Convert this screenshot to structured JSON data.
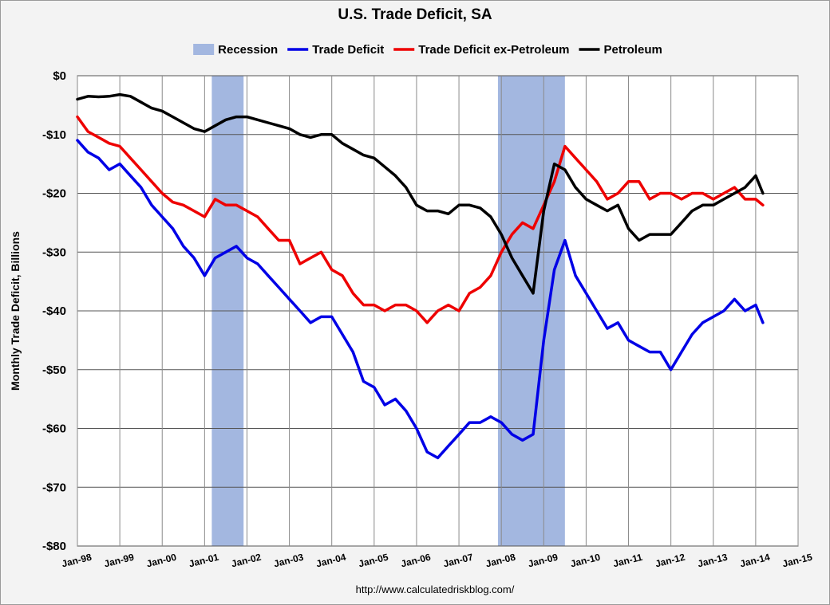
{
  "chart_data": {
    "type": "line",
    "title": "U.S. Trade Deficit, SA",
    "ylabel": "Monthly Trade Deficit, Billions",
    "xlabel": "",
    "source": "http://www.calculatedriskblog.com/",
    "ylim": [
      -80,
      0
    ],
    "xlim": [
      1998.0,
      2015.0
    ],
    "y_ticks": [
      0,
      -10,
      -20,
      -30,
      -40,
      -50,
      -60,
      -70,
      -80
    ],
    "y_tick_labels": [
      "$0",
      "-$10",
      "-$20",
      "-$30",
      "-$40",
      "-$50",
      "-$60",
      "-$70",
      "-$80"
    ],
    "x_ticks": [
      1998,
      1999,
      2000,
      2001,
      2002,
      2003,
      2004,
      2005,
      2006,
      2007,
      2008,
      2009,
      2010,
      2011,
      2012,
      2013,
      2014,
      2015
    ],
    "x_tick_labels": [
      "Jan-98",
      "Jan-99",
      "Jan-00",
      "Jan-01",
      "Jan-02",
      "Jan-03",
      "Jan-04",
      "Jan-05",
      "Jan-06",
      "Jan-07",
      "Jan-08",
      "Jan-09",
      "Jan-10",
      "Jan-11",
      "Jan-12",
      "Jan-13",
      "Jan-14",
      "Jan-15"
    ],
    "legend": [
      {
        "label": "Recession",
        "color": "#a3b7e0",
        "kind": "box"
      },
      {
        "label": "Trade Deficit",
        "color": "#0000e6",
        "kind": "line"
      },
      {
        "label": "Trade Deficit ex-Petroleum",
        "color": "#ee0000",
        "kind": "line"
      },
      {
        "label": "Petroleum",
        "color": "#000000",
        "kind": "line"
      }
    ],
    "recessions": [
      {
        "start": 2001.17,
        "end": 2001.92
      },
      {
        "start": 2007.92,
        "end": 2009.5
      }
    ],
    "series": [
      {
        "name": "Trade Deficit",
        "color": "#0000e6",
        "points": [
          [
            1998.0,
            -11
          ],
          [
            1998.25,
            -13
          ],
          [
            1998.5,
            -14
          ],
          [
            1998.75,
            -16
          ],
          [
            1999.0,
            -15
          ],
          [
            1999.25,
            -17
          ],
          [
            1999.5,
            -19
          ],
          [
            1999.75,
            -22
          ],
          [
            2000.0,
            -24
          ],
          [
            2000.25,
            -26
          ],
          [
            2000.5,
            -29
          ],
          [
            2000.75,
            -31
          ],
          [
            2001.0,
            -34
          ],
          [
            2001.25,
            -31
          ],
          [
            2001.5,
            -30
          ],
          [
            2001.75,
            -29
          ],
          [
            2002.0,
            -31
          ],
          [
            2002.25,
            -32
          ],
          [
            2002.5,
            -34
          ],
          [
            2002.75,
            -36
          ],
          [
            2003.0,
            -38
          ],
          [
            2003.25,
            -40
          ],
          [
            2003.5,
            -42
          ],
          [
            2003.75,
            -41
          ],
          [
            2004.0,
            -41
          ],
          [
            2004.25,
            -44
          ],
          [
            2004.5,
            -47
          ],
          [
            2004.75,
            -52
          ],
          [
            2005.0,
            -53
          ],
          [
            2005.25,
            -56
          ],
          [
            2005.5,
            -55
          ],
          [
            2005.75,
            -57
          ],
          [
            2006.0,
            -60
          ],
          [
            2006.25,
            -64
          ],
          [
            2006.5,
            -65
          ],
          [
            2006.75,
            -63
          ],
          [
            2007.0,
            -61
          ],
          [
            2007.25,
            -59
          ],
          [
            2007.5,
            -59
          ],
          [
            2007.75,
            -58
          ],
          [
            2008.0,
            -59
          ],
          [
            2008.25,
            -61
          ],
          [
            2008.5,
            -62
          ],
          [
            2008.75,
            -61
          ],
          [
            2009.0,
            -45
          ],
          [
            2009.25,
            -33
          ],
          [
            2009.5,
            -28
          ],
          [
            2009.75,
            -34
          ],
          [
            2010.0,
            -37
          ],
          [
            2010.25,
            -40
          ],
          [
            2010.5,
            -43
          ],
          [
            2010.75,
            -42
          ],
          [
            2011.0,
            -45
          ],
          [
            2011.25,
            -46
          ],
          [
            2011.5,
            -47
          ],
          [
            2011.75,
            -47
          ],
          [
            2012.0,
            -50
          ],
          [
            2012.25,
            -47
          ],
          [
            2012.5,
            -44
          ],
          [
            2012.75,
            -42
          ],
          [
            2013.0,
            -41
          ],
          [
            2013.25,
            -40
          ],
          [
            2013.5,
            -38
          ],
          [
            2013.75,
            -40
          ],
          [
            2014.0,
            -39
          ],
          [
            2014.17,
            -42
          ]
        ]
      },
      {
        "name": "Trade Deficit ex-Petroleum",
        "color": "#ee0000",
        "points": [
          [
            1998.0,
            -7
          ],
          [
            1998.25,
            -9.5
          ],
          [
            1998.5,
            -10.5
          ],
          [
            1998.75,
            -11.5
          ],
          [
            1999.0,
            -12
          ],
          [
            1999.25,
            -14
          ],
          [
            1999.5,
            -16
          ],
          [
            1999.75,
            -18
          ],
          [
            2000.0,
            -20
          ],
          [
            2000.25,
            -21.5
          ],
          [
            2000.5,
            -22
          ],
          [
            2000.75,
            -23
          ],
          [
            2001.0,
            -24
          ],
          [
            2001.25,
            -21
          ],
          [
            2001.5,
            -22
          ],
          [
            2001.75,
            -22
          ],
          [
            2002.0,
            -23
          ],
          [
            2002.25,
            -24
          ],
          [
            2002.5,
            -26
          ],
          [
            2002.75,
            -28
          ],
          [
            2003.0,
            -28
          ],
          [
            2003.25,
            -32
          ],
          [
            2003.5,
            -31
          ],
          [
            2003.75,
            -30
          ],
          [
            2004.0,
            -33
          ],
          [
            2004.25,
            -34
          ],
          [
            2004.5,
            -37
          ],
          [
            2004.75,
            -39
          ],
          [
            2005.0,
            -39
          ],
          [
            2005.25,
            -40
          ],
          [
            2005.5,
            -39
          ],
          [
            2005.75,
            -39
          ],
          [
            2006.0,
            -40
          ],
          [
            2006.25,
            -42
          ],
          [
            2006.5,
            -40
          ],
          [
            2006.75,
            -39
          ],
          [
            2007.0,
            -40
          ],
          [
            2007.25,
            -37
          ],
          [
            2007.5,
            -36
          ],
          [
            2007.75,
            -34
          ],
          [
            2008.0,
            -30
          ],
          [
            2008.25,
            -27
          ],
          [
            2008.5,
            -25
          ],
          [
            2008.75,
            -26
          ],
          [
            2009.0,
            -22
          ],
          [
            2009.25,
            -18
          ],
          [
            2009.5,
            -12
          ],
          [
            2009.75,
            -14
          ],
          [
            2010.0,
            -16
          ],
          [
            2010.25,
            -18
          ],
          [
            2010.5,
            -21
          ],
          [
            2010.75,
            -20
          ],
          [
            2011.0,
            -18
          ],
          [
            2011.25,
            -18
          ],
          [
            2011.5,
            -21
          ],
          [
            2011.75,
            -20
          ],
          [
            2012.0,
            -20
          ],
          [
            2012.25,
            -21
          ],
          [
            2012.5,
            -20
          ],
          [
            2012.75,
            -20
          ],
          [
            2013.0,
            -21
          ],
          [
            2013.25,
            -20
          ],
          [
            2013.5,
            -19
          ],
          [
            2013.75,
            -21
          ],
          [
            2014.0,
            -21
          ],
          [
            2014.17,
            -22
          ]
        ]
      },
      {
        "name": "Petroleum",
        "color": "#000000",
        "points": [
          [
            1998.0,
            -4
          ],
          [
            1998.25,
            -3.5
          ],
          [
            1998.5,
            -3.6
          ],
          [
            1998.75,
            -3.5
          ],
          [
            1999.0,
            -3.2
          ],
          [
            1999.25,
            -3.5
          ],
          [
            1999.5,
            -4.5
          ],
          [
            1999.75,
            -5.5
          ],
          [
            2000.0,
            -6
          ],
          [
            2000.25,
            -7
          ],
          [
            2000.5,
            -8
          ],
          [
            2000.75,
            -9
          ],
          [
            2001.0,
            -9.5
          ],
          [
            2001.25,
            -8.5
          ],
          [
            2001.5,
            -7.5
          ],
          [
            2001.75,
            -7
          ],
          [
            2002.0,
            -7
          ],
          [
            2002.25,
            -7.5
          ],
          [
            2002.5,
            -8
          ],
          [
            2002.75,
            -8.5
          ],
          [
            2003.0,
            -9
          ],
          [
            2003.25,
            -10
          ],
          [
            2003.5,
            -10.5
          ],
          [
            2003.75,
            -10
          ],
          [
            2004.0,
            -10
          ],
          [
            2004.25,
            -11.5
          ],
          [
            2004.5,
            -12.5
          ],
          [
            2004.75,
            -13.5
          ],
          [
            2005.0,
            -14
          ],
          [
            2005.25,
            -15.5
          ],
          [
            2005.5,
            -17
          ],
          [
            2005.75,
            -19
          ],
          [
            2006.0,
            -22
          ],
          [
            2006.25,
            -23
          ],
          [
            2006.5,
            -23
          ],
          [
            2006.75,
            -23.5
          ],
          [
            2007.0,
            -22
          ],
          [
            2007.25,
            -22
          ],
          [
            2007.5,
            -22.5
          ],
          [
            2007.75,
            -24
          ],
          [
            2008.0,
            -27
          ],
          [
            2008.25,
            -31
          ],
          [
            2008.5,
            -34
          ],
          [
            2008.75,
            -37
          ],
          [
            2009.0,
            -23
          ],
          [
            2009.25,
            -15
          ],
          [
            2009.5,
            -16
          ],
          [
            2009.75,
            -19
          ],
          [
            2010.0,
            -21
          ],
          [
            2010.25,
            -22
          ],
          [
            2010.5,
            -23
          ],
          [
            2010.75,
            -22
          ],
          [
            2011.0,
            -26
          ],
          [
            2011.25,
            -28
          ],
          [
            2011.5,
            -27
          ],
          [
            2011.75,
            -27
          ],
          [
            2012.0,
            -27
          ],
          [
            2012.25,
            -25
          ],
          [
            2012.5,
            -23
          ],
          [
            2012.75,
            -22
          ],
          [
            2013.0,
            -22
          ],
          [
            2013.25,
            -21
          ],
          [
            2013.5,
            -20
          ],
          [
            2013.75,
            -19
          ],
          [
            2014.0,
            -17
          ],
          [
            2014.17,
            -20
          ]
        ]
      }
    ]
  }
}
